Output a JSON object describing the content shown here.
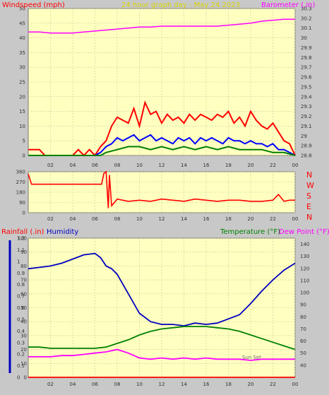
{
  "title": "24 hour graph day - May 24 2023",
  "colors": {
    "bg": "#ffffc0",
    "frame": "#c8c8c8",
    "grid": "#c8c8a0",
    "axis": "#555555",
    "tick_text": "#333333",
    "wind": "#ff0000",
    "gust": "#0000ff",
    "avg": "#008000",
    "baro": "#ff00ff",
    "dir": "#ff0000",
    "hum": "#0000c0",
    "temp": "#008000",
    "dew": "#ff00ff",
    "rain": "#ff0000",
    "title": "#d4d400"
  },
  "labels": {
    "windspeed": "Windspeed (mph)",
    "barometer": "Barometer (.in)",
    "rainfall": "Rainfall (.in)",
    "humidity": "Humidity",
    "temperature": "Temperature (°F)",
    "dewpoint": "Dew Point (°F)",
    "sunset": "Sun Set",
    "compass": [
      "N",
      "W",
      "S",
      "E",
      "N"
    ]
  },
  "chart_data": [
    {
      "type": "line",
      "name": "wind",
      "title": "24 hour graph day - May 24 2023",
      "xlabel": "",
      "ylabel": "Windspeed (mph)",
      "y2label": "Barometer (.in)",
      "x_ticks": [
        "02",
        "04",
        "06",
        "08",
        "10",
        "12",
        "14",
        "16",
        "18",
        "20",
        "22",
        "00"
      ],
      "ylim": [
        0,
        50
      ],
      "y_ticks": [
        0,
        5,
        10,
        15,
        20,
        25,
        30,
        35,
        40,
        45,
        50
      ],
      "y2lim": [
        28.8,
        30.3
      ],
      "y2_ticks": [
        28.8,
        28.9,
        29,
        29.1,
        29.2,
        29.3,
        29.4,
        29.5,
        29.6,
        29.7,
        29.8,
        29.9,
        30,
        30.1,
        30.2,
        30.3
      ],
      "grid": true,
      "series": [
        {
          "id": "gust",
          "values_x": [
            0,
            1,
            1.5,
            2,
            3,
            4,
            4.5,
            5,
            5.5,
            6,
            6.5,
            7,
            7.5,
            8,
            8.5,
            9,
            9.5,
            10,
            10.5,
            11,
            11.5,
            12,
            12.5,
            13,
            13.5,
            14,
            14.5,
            15,
            15.5,
            16,
            16.5,
            17,
            17.5,
            18,
            18.5,
            19,
            19.5,
            20,
            20.5,
            21,
            21.5,
            22,
            22.5,
            23,
            23.5,
            24
          ],
          "values_y": [
            2,
            2,
            0,
            0,
            0,
            0,
            2,
            0,
            2,
            0,
            3,
            5,
            10,
            13,
            12,
            11,
            16,
            10,
            18,
            14,
            15,
            11,
            14,
            12,
            13,
            11,
            14,
            12,
            14,
            13,
            12,
            14,
            13,
            15,
            11,
            13,
            10,
            15,
            12,
            10,
            9,
            11,
            8,
            5,
            4,
            0
          ]
        },
        {
          "id": "wind",
          "values_x": [
            0,
            2,
            4,
            6,
            6.5,
            7,
            7.5,
            8,
            8.5,
            9,
            9.5,
            10,
            10.5,
            11,
            11.5,
            12,
            12.5,
            13,
            13.5,
            14,
            14.5,
            15,
            15.5,
            16,
            16.5,
            17,
            17.5,
            18,
            18.5,
            19,
            19.5,
            20,
            20.5,
            21,
            21.5,
            22,
            22.5,
            23,
            23.5,
            24
          ],
          "values_y": [
            0,
            0,
            0,
            0,
            1,
            3,
            4,
            6,
            5,
            6,
            7,
            5,
            6,
            7,
            5,
            6,
            5,
            4,
            6,
            5,
            6,
            4,
            6,
            5,
            6,
            5,
            4,
            6,
            5,
            5,
            4,
            5,
            4,
            4,
            3,
            4,
            2,
            2,
            1,
            0
          ]
        },
        {
          "id": "avg",
          "values_x": [
            0,
            6,
            6.5,
            7,
            8,
            9,
            10,
            11,
            12,
            13,
            14,
            15,
            16,
            17,
            18,
            19,
            20,
            21,
            22,
            23,
            24
          ],
          "values_y": [
            0,
            0,
            0,
            1,
            2,
            3,
            3,
            2,
            3,
            2,
            3,
            2,
            3,
            2,
            3,
            2,
            2,
            2,
            1,
            1,
            0
          ]
        },
        {
          "id": "baro",
          "axis": "y2",
          "values_x": [
            0,
            1,
            2,
            3,
            4,
            5,
            6,
            7,
            8,
            9,
            10,
            11,
            12,
            13,
            14,
            15,
            16,
            17,
            18,
            19,
            20,
            21,
            22,
            23,
            24
          ],
          "values_y": [
            30.06,
            30.06,
            30.05,
            30.05,
            30.05,
            30.06,
            30.07,
            30.08,
            30.09,
            30.1,
            30.11,
            30.11,
            30.12,
            30.12,
            30.12,
            30.12,
            30.12,
            30.12,
            30.13,
            30.14,
            30.15,
            30.17,
            30.18,
            30.19,
            30.19
          ]
        }
      ]
    },
    {
      "type": "line",
      "name": "direction",
      "ylim": [
        0,
        360
      ],
      "y_ticks": [
        0,
        90,
        180,
        270,
        360
      ],
      "x_ticks": [
        "02",
        "04",
        "06",
        "08",
        "10",
        "12",
        "14",
        "16",
        "18",
        "20",
        "22",
        "00"
      ],
      "grid": true,
      "series": [
        {
          "id": "dir",
          "values_x": [
            0,
            0.3,
            1,
            2,
            3,
            4,
            5,
            6,
            6.6,
            6.8,
            7.0,
            7.2,
            7.3,
            7.5,
            8,
            9,
            10,
            11,
            12,
            13,
            14,
            15,
            16,
            17,
            18,
            19,
            20,
            21,
            22,
            22.5,
            23,
            23.5,
            24
          ],
          "values_y": [
            340,
            250,
            250,
            250,
            250,
            250,
            250,
            250,
            250,
            345,
            360,
            40,
            330,
            60,
            120,
            100,
            110,
            100,
            120,
            110,
            100,
            120,
            110,
            100,
            110,
            110,
            100,
            100,
            110,
            160,
            100,
            110,
            110
          ]
        }
      ]
    },
    {
      "type": "line",
      "name": "temp_hum",
      "y_left_outer_label": "Rainfall (.in)",
      "y_left_inner_label": "Humidity",
      "y_right_label": "Temperature (°F) / Dew Point (°F)",
      "rain_lim": [
        0,
        1.2
      ],
      "rain_ticks": [
        0,
        0.1,
        0.2,
        0.3,
        0.4,
        0.5,
        0.6,
        0.7,
        0.8,
        0.9,
        1,
        1.1,
        1.2
      ],
      "hum_lim": [
        0,
        100
      ],
      "hum_ticks": [
        0,
        10,
        20,
        30,
        40,
        50,
        60,
        70,
        80,
        90,
        100
      ],
      "temp_lim": [
        30,
        145
      ],
      "temp_ticks": [
        40,
        50,
        60,
        70,
        80,
        90,
        100,
        110,
        120,
        130,
        140
      ],
      "x_ticks": [
        "02",
        "04",
        "06",
        "08",
        "10",
        "12",
        "14",
        "16",
        "18",
        "20",
        "22",
        "00"
      ],
      "grid": true,
      "series": [
        {
          "id": "hum",
          "values_x": [
            0,
            1,
            2,
            3,
            4,
            5,
            6,
            6.5,
            7,
            7.5,
            8,
            9,
            10,
            11,
            12,
            13,
            14,
            15,
            16,
            17,
            18,
            19,
            20,
            21,
            22,
            23,
            24
          ],
          "values_y": [
            78,
            79,
            80,
            82,
            85,
            88,
            89,
            86,
            80,
            78,
            74,
            60,
            46,
            40,
            38,
            38,
            37,
            39,
            38,
            39,
            42,
            45,
            53,
            62,
            70,
            77,
            82
          ]
        },
        {
          "id": "temp",
          "axis": "temp",
          "values_x": [
            0,
            1,
            2,
            3,
            4,
            5,
            6,
            7,
            8,
            9,
            10,
            11,
            12,
            13,
            14,
            15,
            16,
            17,
            18,
            19,
            20,
            21,
            22,
            23,
            24
          ],
          "values_y": [
            55,
            55,
            54,
            54,
            54,
            54,
            54,
            55,
            58,
            61,
            65,
            68,
            70,
            71,
            72,
            72,
            72,
            71,
            70,
            68,
            65,
            62,
            59,
            56,
            53
          ]
        },
        {
          "id": "dew",
          "axis": "temp",
          "values_x": [
            0,
            1,
            2,
            3,
            4,
            5,
            6,
            7,
            8,
            9,
            10,
            11,
            12,
            13,
            14,
            15,
            16,
            17,
            18,
            19,
            20,
            21,
            22,
            23,
            24
          ],
          "values_y": [
            47,
            47,
            47,
            48,
            48,
            49,
            50,
            51,
            53,
            50,
            46,
            45,
            46,
            45,
            46,
            45,
            46,
            45,
            45,
            45,
            44,
            45,
            45,
            45,
            45
          ]
        },
        {
          "id": "rain",
          "axis": "rain",
          "values_x": [
            0,
            24
          ],
          "values_y": [
            0,
            0
          ]
        }
      ]
    }
  ]
}
